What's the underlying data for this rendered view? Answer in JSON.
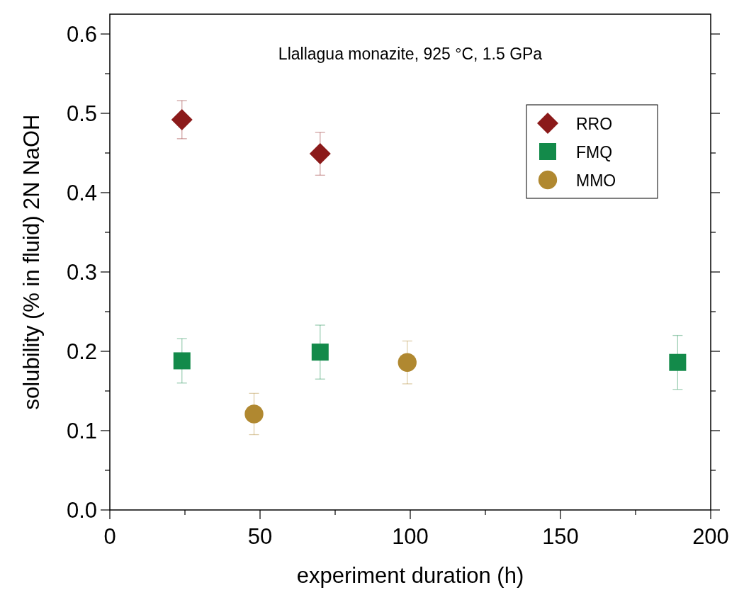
{
  "chart_data": {
    "type": "scatter",
    "xlabel": "experiment duration (h)",
    "ylabel": "solubility (% in fluid) 2N NaOH",
    "annotations": [
      "Llallagua monazite, 925 °C, 1.5 GPa"
    ],
    "xlim": [
      0,
      200
    ],
    "xticks": [
      0,
      {
        "value": 25,
        "label": null
      },
      50,
      {
        "value": 75,
        "label": null
      },
      100,
      {
        "value": 125,
        "label": null
      },
      150,
      {
        "value": 175,
        "label": null
      },
      200
    ],
    "ylim": [
      0,
      0.625
    ],
    "yticks": [
      {
        "value": 0,
        "label": "0.0"
      },
      {
        "value": 0.05,
        "label": null
      },
      0.1,
      {
        "value": 0.15,
        "label": null
      },
      0.2,
      {
        "value": 0.25,
        "label": null
      },
      0.3,
      {
        "value": 0.35,
        "label": null
      },
      0.4,
      {
        "value": 0.45,
        "label": null
      },
      0.5,
      {
        "value": 0.55,
        "label": null
      },
      0.6
    ],
    "grid": false,
    "legend": "top right",
    "series": [
      {
        "name": "RRO",
        "color": "#8b1a1a",
        "marker": "diamond",
        "x": [
          24,
          70
        ],
        "values": [
          0.492,
          0.449
        ],
        "errors": [
          0.024,
          0.027
        ]
      },
      {
        "name": "FMQ",
        "color": "#138a4a",
        "marker": "square",
        "x": [
          24,
          70,
          189
        ],
        "values": [
          0.188,
          0.199,
          0.186
        ],
        "errors": [
          0.028,
          0.034,
          0.034
        ]
      },
      {
        "name": "MMO",
        "color": "#b08830",
        "marker": "circle",
        "x": [
          48,
          99
        ],
        "values": [
          0.121,
          0.186
        ],
        "errors": [
          0.026,
          0.027
        ]
      }
    ]
  }
}
